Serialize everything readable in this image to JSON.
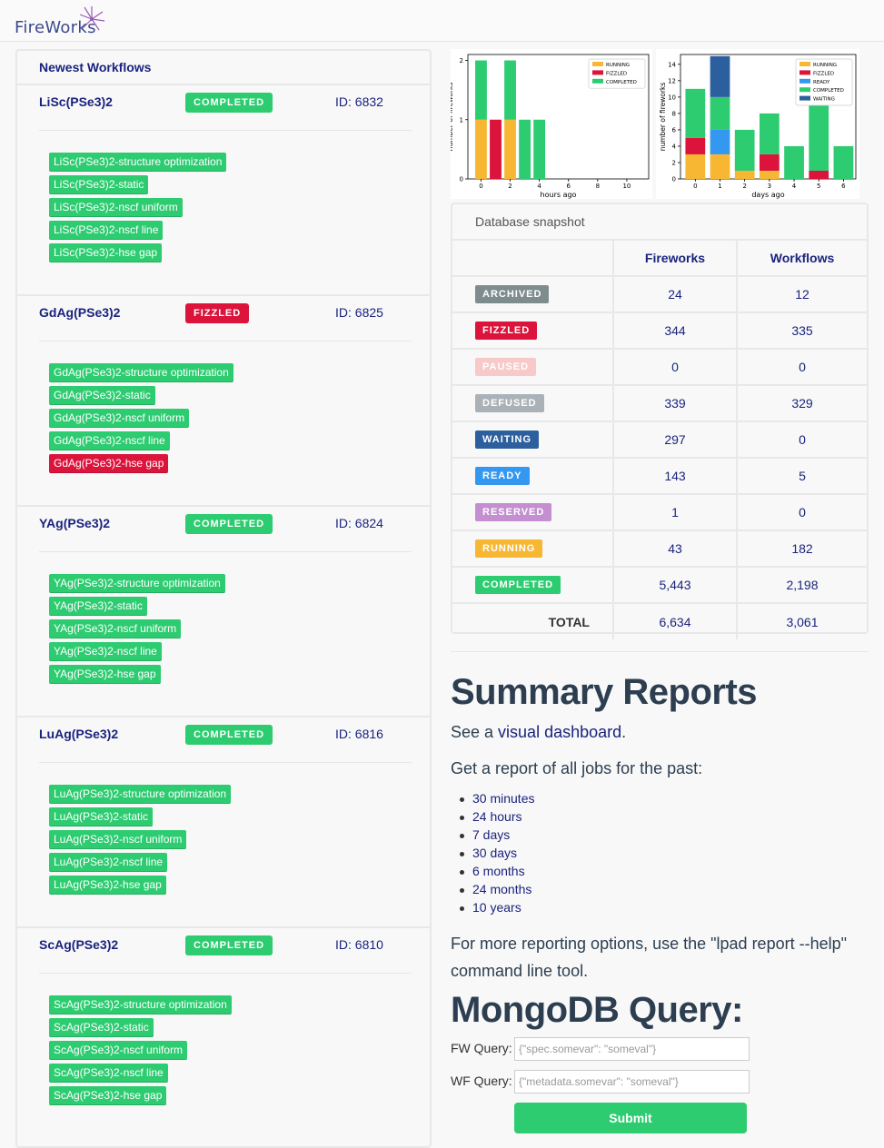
{
  "app": {
    "logo_text": "FireWorks"
  },
  "colors": {
    "completed": "#2ecc71",
    "fizzled": "#dc143c",
    "running": "#f7b733",
    "archived": "#7f8c8d",
    "paused": "#f8c9c9",
    "defused": "#aab2b7",
    "waiting": "#2c5f9e",
    "ready": "#3498f0",
    "reserved": "#c38fd0"
  },
  "workflows": {
    "title": "Newest Workflows",
    "items": [
      {
        "name": "LiSc(PSe3)2",
        "state": "COMPLETED",
        "id_label": "ID: 6832",
        "jobs": [
          {
            "label": "LiSc(PSe3)2-structure optimization",
            "state": "completed"
          },
          {
            "label": "LiSc(PSe3)2-static",
            "state": "completed"
          },
          {
            "label": "LiSc(PSe3)2-nscf uniform",
            "state": "completed"
          },
          {
            "label": "LiSc(PSe3)2-nscf line",
            "state": "completed"
          },
          {
            "label": "LiSc(PSe3)2-hse gap",
            "state": "completed"
          }
        ]
      },
      {
        "name": "GdAg(PSe3)2",
        "state": "FIZZLED",
        "id_label": "ID: 6825",
        "jobs": [
          {
            "label": "GdAg(PSe3)2-structure optimization",
            "state": "completed"
          },
          {
            "label": "GdAg(PSe3)2-static",
            "state": "completed"
          },
          {
            "label": "GdAg(PSe3)2-nscf uniform",
            "state": "completed"
          },
          {
            "label": "GdAg(PSe3)2-nscf line",
            "state": "completed"
          },
          {
            "label": "GdAg(PSe3)2-hse gap",
            "state": "fizzled"
          }
        ]
      },
      {
        "name": "YAg(PSe3)2",
        "state": "COMPLETED",
        "id_label": "ID: 6824",
        "jobs": [
          {
            "label": "YAg(PSe3)2-structure optimization",
            "state": "completed"
          },
          {
            "label": "YAg(PSe3)2-static",
            "state": "completed"
          },
          {
            "label": "YAg(PSe3)2-nscf uniform",
            "state": "completed"
          },
          {
            "label": "YAg(PSe3)2-nscf line",
            "state": "completed"
          },
          {
            "label": "YAg(PSe3)2-hse gap",
            "state": "completed"
          }
        ]
      },
      {
        "name": "LuAg(PSe3)2",
        "state": "COMPLETED",
        "id_label": "ID: 6816",
        "jobs": [
          {
            "label": "LuAg(PSe3)2-structure optimization",
            "state": "completed"
          },
          {
            "label": "LuAg(PSe3)2-static",
            "state": "completed"
          },
          {
            "label": "LuAg(PSe3)2-nscf uniform",
            "state": "completed"
          },
          {
            "label": "LuAg(PSe3)2-nscf line",
            "state": "completed"
          },
          {
            "label": "LuAg(PSe3)2-hse gap",
            "state": "completed"
          }
        ]
      },
      {
        "name": "ScAg(PSe3)2",
        "state": "COMPLETED",
        "id_label": "ID: 6810",
        "jobs": [
          {
            "label": "ScAg(PSe3)2-structure optimization",
            "state": "completed"
          },
          {
            "label": "ScAg(PSe3)2-static",
            "state": "completed"
          },
          {
            "label": "ScAg(PSe3)2-nscf uniform",
            "state": "completed"
          },
          {
            "label": "ScAg(PSe3)2-nscf line",
            "state": "completed"
          },
          {
            "label": "ScAg(PSe3)2-hse gap",
            "state": "completed"
          }
        ]
      }
    ]
  },
  "chart_data": [
    {
      "type": "bar",
      "stacked": true,
      "xlabel": "hours ago",
      "ylabel": "number of fireworks",
      "xticks": [
        0,
        2,
        4,
        6,
        8,
        10
      ],
      "yticks": [
        0,
        1,
        2
      ],
      "xlim": [
        -0.9,
        11.5
      ],
      "ylim": [
        0,
        2.1
      ],
      "legend": [
        "RUNNING",
        "FIZZLED",
        "COMPLETED"
      ],
      "legend_position": "top-right",
      "x": [
        0,
        1,
        2,
        3,
        4
      ],
      "series": [
        {
          "name": "RUNNING",
          "color": "#f7b733",
          "values": [
            1,
            0,
            1,
            0,
            0
          ]
        },
        {
          "name": "FIZZLED",
          "color": "#dc143c",
          "values": [
            0,
            1,
            0,
            0,
            0
          ]
        },
        {
          "name": "COMPLETED",
          "color": "#2ecc71",
          "values": [
            1,
            0,
            1,
            1,
            1
          ]
        }
      ]
    },
    {
      "type": "bar",
      "stacked": true,
      "xlabel": "days ago",
      "ylabel": "number of fireworks",
      "xticks": [
        0,
        1,
        2,
        3,
        4,
        5,
        6
      ],
      "yticks": [
        0,
        2,
        4,
        6,
        8,
        10,
        12,
        14
      ],
      "xlim": [
        -0.6,
        6.5
      ],
      "ylim": [
        0,
        15.2
      ],
      "legend": [
        "RUNNING",
        "FIZZLED",
        "READY",
        "COMPLETED",
        "WAITING"
      ],
      "legend_position": "top-right",
      "x": [
        0,
        1,
        2,
        3,
        4,
        5,
        6
      ],
      "series": [
        {
          "name": "RUNNING",
          "color": "#f7b733",
          "values": [
            3,
            3,
            1,
            1,
            0,
            0,
            0
          ]
        },
        {
          "name": "FIZZLED",
          "color": "#dc143c",
          "values": [
            2,
            0,
            0,
            2,
            0,
            1,
            0
          ]
        },
        {
          "name": "READY",
          "color": "#3498f0",
          "values": [
            0,
            3,
            0,
            0,
            0,
            0,
            0
          ]
        },
        {
          "name": "COMPLETED",
          "color": "#2ecc71",
          "values": [
            6,
            4,
            5,
            5,
            4,
            9,
            4
          ]
        },
        {
          "name": "WAITING",
          "color": "#2c5f9e",
          "values": [
            0,
            5,
            0,
            0,
            0,
            0,
            0
          ]
        }
      ]
    }
  ],
  "db_snapshot": {
    "title": "Database snapshot",
    "headers": [
      "Fireworks",
      "Workflows"
    ],
    "rows": [
      {
        "state": "ARCHIVED",
        "key": "archived",
        "fireworks": "24",
        "workflows": "12"
      },
      {
        "state": "FIZZLED",
        "key": "fizzled",
        "fireworks": "344",
        "workflows": "335"
      },
      {
        "state": "PAUSED",
        "key": "paused",
        "fireworks": "0",
        "workflows": "0"
      },
      {
        "state": "DEFUSED",
        "key": "defused",
        "fireworks": "339",
        "workflows": "329"
      },
      {
        "state": "WAITING",
        "key": "waiting",
        "fireworks": "297",
        "workflows": "0"
      },
      {
        "state": "READY",
        "key": "ready",
        "fireworks": "143",
        "workflows": "5"
      },
      {
        "state": "RESERVED",
        "key": "reserved",
        "fireworks": "1",
        "workflows": "0"
      },
      {
        "state": "RUNNING",
        "key": "running",
        "fireworks": "43",
        "workflows": "182"
      },
      {
        "state": "COMPLETED",
        "key": "completed",
        "fireworks": "5,443",
        "workflows": "2,198"
      }
    ],
    "total": {
      "label": "TOTAL",
      "fireworks": "6,634",
      "workflows": "3,061"
    }
  },
  "summary": {
    "title": "Summary Reports",
    "see_prefix": "See a ",
    "see_link": "visual dashboard",
    "see_suffix": ".",
    "get_report": "Get a report of all jobs for the past:",
    "periods": [
      "30 minutes",
      "24 hours",
      "7 days",
      "30 days",
      "6 months",
      "24 months",
      "10 years"
    ],
    "more_options": "For more reporting options, use the \"lpad report --help\" command line tool."
  },
  "query": {
    "title": "MongoDB Query:",
    "fw_label": "FW Query:",
    "fw_placeholder": "{\"spec.somevar\": \"someval\"}",
    "wf_label": "WF Query:",
    "wf_placeholder": "{\"metadata.somevar\": \"someval\"}",
    "submit_label": "Submit"
  }
}
